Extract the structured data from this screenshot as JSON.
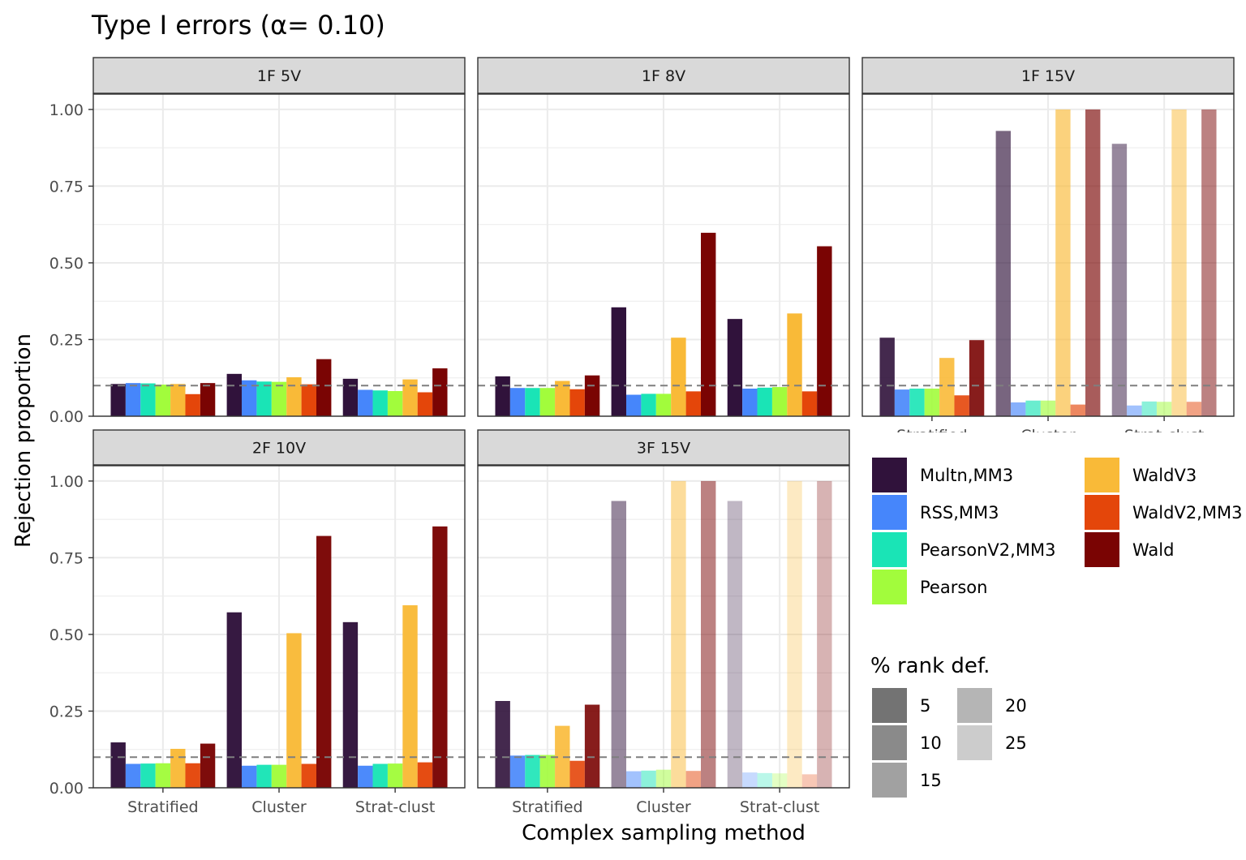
{
  "title": "Type I errors (α= 0.10)",
  "colors": {
    "strip_fill": "#d9d9d9",
    "panel_border": "#333333",
    "grid": "#ebebeb",
    "reference_line": "#7f7f7f",
    "tick_text": "#4d4d4d",
    "text": "#1a1a1a"
  },
  "chart_data": {
    "type": "bar",
    "title": "Type I errors (α= 0.10)",
    "xlabel": "Complex sampling method",
    "ylabel": "Rejection proportion",
    "ylim": [
      0,
      1.05
    ],
    "yticks": [
      0,
      0.25,
      0.5,
      0.75,
      1.0
    ],
    "ytick_labels": [
      "0.00",
      "0.25",
      "0.50",
      "0.75",
      "1.00"
    ],
    "reference_line": 0.1,
    "grid": true,
    "categories": [
      "Stratified",
      "Cluster",
      "Strat-clust"
    ],
    "methods": [
      {
        "name": "Multn,MM3",
        "color": "#30123b"
      },
      {
        "name": "RSS,MM3",
        "color": "#4686fb"
      },
      {
        "name": "PearsonV2,MM3",
        "color": "#1ae4b6"
      },
      {
        "name": "Pearson",
        "color": "#a2fc3c"
      },
      {
        "name": "WaldV3",
        "color": "#f9ba38"
      },
      {
        "name": "WaldV2,MM3",
        "color": "#e4460a"
      },
      {
        "name": "Wald",
        "color": "#7a0403"
      }
    ],
    "legend_fill_title": "",
    "legend_alpha_title": "% rank def.",
    "legend_alpha": [
      {
        "label": "5",
        "alpha": 0.55
      },
      {
        "label": "10",
        "alpha": 0.46
      },
      {
        "label": "15",
        "alpha": 0.37
      },
      {
        "label": "20",
        "alpha": 0.29
      },
      {
        "label": "25",
        "alpha": 0.2
      }
    ],
    "panels": [
      {
        "label": "1F 5V",
        "alpha": [
          1,
          1,
          1
        ],
        "values": [
          [
            0.105,
            0.108,
            0.107,
            0.103,
            0.105,
            0.072,
            0.108
          ],
          [
            0.138,
            0.117,
            0.113,
            0.112,
            0.127,
            0.104,
            0.186
          ],
          [
            0.122,
            0.086,
            0.084,
            0.082,
            0.12,
            0.078,
            0.156
          ]
        ]
      },
      {
        "label": "1F 8V",
        "alpha": [
          1,
          1,
          1
        ],
        "values": [
          [
            0.13,
            0.092,
            0.092,
            0.092,
            0.115,
            0.088,
            0.133
          ],
          [
            0.355,
            0.07,
            0.073,
            0.073,
            0.256,
            0.081,
            0.598
          ],
          [
            0.317,
            0.09,
            0.093,
            0.095,
            0.335,
            0.081,
            0.554
          ]
        ]
      },
      {
        "label": "1F 15V",
        "alpha": [
          0.9,
          0.65,
          0.5
        ],
        "values": [
          [
            0.256,
            0.087,
            0.09,
            0.09,
            0.19,
            0.068,
            0.248
          ],
          [
            0.93,
            0.045,
            0.051,
            0.051,
            1.0,
            0.038,
            1.0
          ],
          [
            0.888,
            0.035,
            0.048,
            0.047,
            1.0,
            0.047,
            1.0
          ]
        ]
      },
      {
        "label": "2F 10V",
        "alpha": [
          0.97,
          0.97,
          0.97
        ],
        "values": [
          [
            0.148,
            0.078,
            0.079,
            0.08,
            0.127,
            0.08,
            0.144
          ],
          [
            0.572,
            0.072,
            0.075,
            0.075,
            0.504,
            0.078,
            0.821
          ],
          [
            0.54,
            0.072,
            0.078,
            0.079,
            0.595,
            0.083,
            0.852
          ]
        ]
      },
      {
        "label": "3F 15V",
        "alpha": [
          0.9,
          0.5,
          0.3
        ],
        "values": [
          [
            0.283,
            0.105,
            0.107,
            0.107,
            0.202,
            0.088,
            0.271
          ],
          [
            0.935,
            0.054,
            0.056,
            0.059,
            1.0,
            0.055,
            1.0
          ],
          [
            0.935,
            0.05,
            0.048,
            0.047,
            1.0,
            0.044,
            1.0
          ]
        ]
      }
    ]
  }
}
